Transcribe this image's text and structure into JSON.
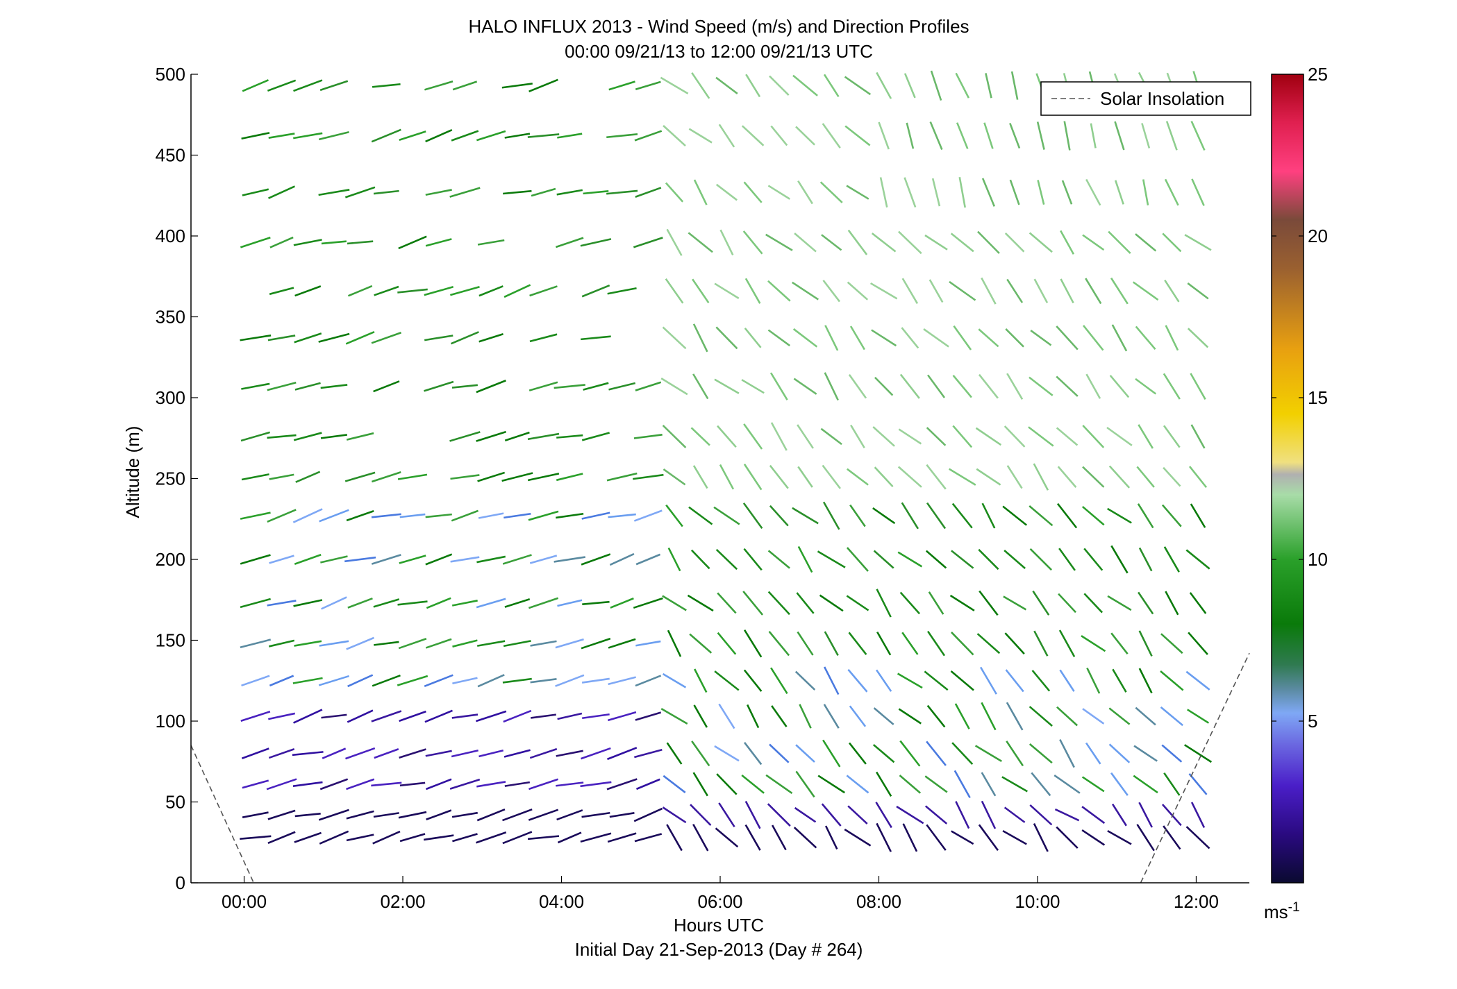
{
  "chart_data": {
    "type": "wind-barb-profile",
    "title": "HALO INFLUX 2013 - Wind Speed (m/s) and Direction Profiles",
    "subtitle": "00:00 09/21/13 to 12:00 09/21/13  UTC",
    "xlabel": "Hours UTC",
    "xlabel2": "Initial Day 21-Sep-2013 (Day # 264)",
    "ylabel": "Altitude (m)",
    "xlim": [
      -0.67,
      12.67
    ],
    "ylim": [
      0,
      500
    ],
    "x_ticks": [
      {
        "value": 0,
        "label": "00:00"
      },
      {
        "value": 2,
        "label": "02:00"
      },
      {
        "value": 4,
        "label": "04:00"
      },
      {
        "value": 6,
        "label": "06:00"
      },
      {
        "value": 8,
        "label": "08:00"
      },
      {
        "value": 10,
        "label": "10:00"
      },
      {
        "value": 12,
        "label": "12:00"
      }
    ],
    "y_ticks": [
      0,
      50,
      100,
      150,
      200,
      250,
      300,
      350,
      400,
      450,
      500
    ],
    "colorbar": {
      "label": "ms",
      "label_exponent": "-1",
      "range": [
        0,
        25
      ],
      "ticks": [
        5,
        10,
        15,
        20,
        25
      ]
    },
    "legend": {
      "placement": "top-right",
      "entries": [
        "Solar Insolation"
      ]
    },
    "solar_insolation": {
      "morning": [
        [
          -0.67,
          85
        ],
        [
          0.12,
          0
        ]
      ],
      "evening": [
        [
          11.3,
          0
        ],
        [
          12.67,
          142
        ]
      ]
    },
    "grid": false
  }
}
